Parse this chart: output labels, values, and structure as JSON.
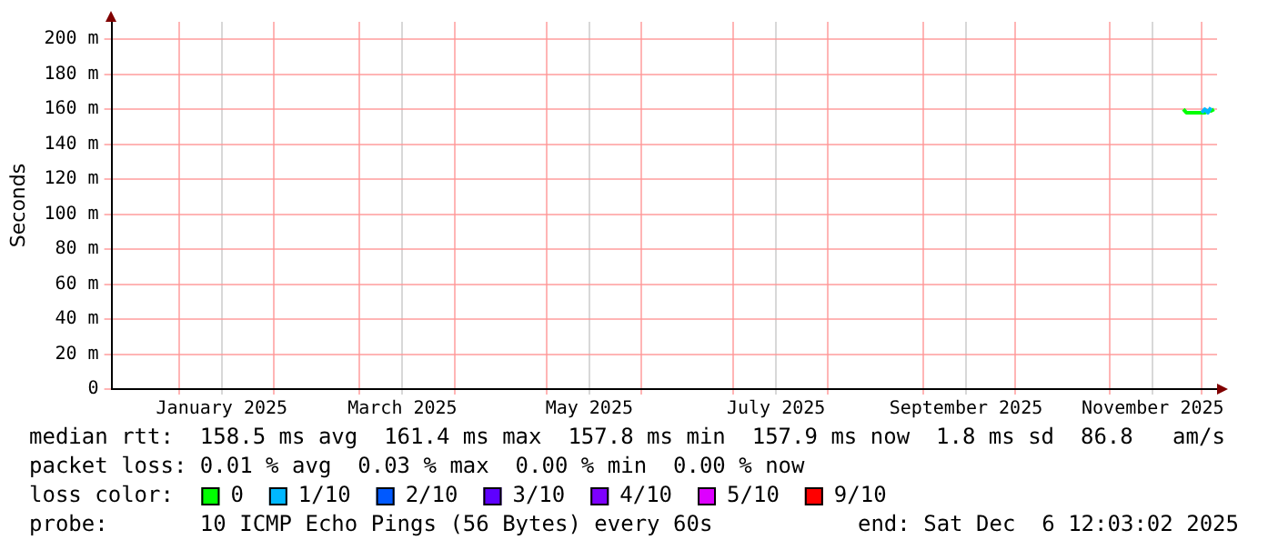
{
  "chart_data": {
    "type": "line",
    "ylabel": "Seconds",
    "legend_title": "loss color:",
    "legend": "bottom",
    "grid": true,
    "marker": "none",
    "line_style": "solid",
    "xlim": [
      "2024-12-10",
      "2025-12-06"
    ],
    "xticks": [
      {
        "value": "2025-01-01",
        "label": null
      },
      {
        "value": "2025-01-15",
        "label": "January 2025"
      },
      {
        "value": "2025-02-01",
        "label": null
      },
      {
        "value": "2025-03-01",
        "label": null
      },
      {
        "value": "2025-03-15",
        "label": "March 2025"
      },
      {
        "value": "2025-04-01",
        "label": null
      },
      {
        "value": "2025-05-01",
        "label": null
      },
      {
        "value": "2025-05-15",
        "label": "May 2025"
      },
      {
        "value": "2025-06-01",
        "label": null
      },
      {
        "value": "2025-07-01",
        "label": null
      },
      {
        "value": "2025-07-15",
        "label": "July 2025"
      },
      {
        "value": "2025-08-01",
        "label": null
      },
      {
        "value": "2025-09-01",
        "label": null
      },
      {
        "value": "2025-09-15",
        "label": "September 2025"
      },
      {
        "value": "2025-10-01",
        "label": null
      },
      {
        "value": "2025-11-01",
        "label": null
      },
      {
        "value": "2025-11-15",
        "label": "November 2025"
      },
      {
        "value": "2025-12-01",
        "label": null
      }
    ],
    "ylim": [
      0,
      210
    ],
    "yticks": [
      0,
      {
        "value": 20,
        "label": "20 m"
      },
      {
        "value": 40,
        "label": "40 m"
      },
      {
        "value": 60,
        "label": "60 m"
      },
      {
        "value": 80,
        "label": "80 m"
      },
      {
        "value": 100,
        "label": "100 m"
      },
      {
        "value": 120,
        "label": "120 m"
      },
      {
        "value": 140,
        "label": "140 m"
      },
      {
        "value": 160,
        "label": "160 m"
      },
      {
        "value": 180,
        "label": "180 m"
      },
      {
        "value": 200,
        "label": "200 m"
      }
    ],
    "series": [
      {
        "name": "0",
        "color": "#00ff00",
        "x": [
          "2025-11-25",
          "2025-11-26",
          "2025-11-27",
          "2025-11-28",
          "2025-11-29",
          "2025-11-30",
          "2025-12-01",
          "2025-12-02",
          "2025-12-03",
          "2025-12-04",
          "2025-12-05"
        ],
        "values": [
          160,
          158,
          158,
          158,
          158,
          158,
          158,
          158,
          159,
          159,
          160
        ]
      },
      {
        "name": "1/10",
        "color": "#00b8ff",
        "x": [
          "2025-12-01",
          "2025-12-02",
          "2025-12-03",
          "2025-12-04"
        ],
        "values": [
          158,
          160,
          158,
          161
        ]
      },
      {
        "name": "2/10",
        "color": "#0059ff"
      },
      {
        "name": "3/10",
        "color": "#5e00ff"
      },
      {
        "name": "4/10",
        "color": "#7e00ff"
      },
      {
        "name": "5/10",
        "color": "#dd00ff"
      },
      {
        "name": "9/10",
        "color": "#ff0000"
      }
    ],
    "annotations": [
      "median rtt:  158.5 ms avg  161.4 ms max  157.8 ms min  157.9 ms now  1.8 ms sd  86.8   am/s",
      "packet loss: 0.01 % avg  0.03 % max  0.00 % min  0.00 % now",
      "probe:       10 ICMP Echo Pings (56 Bytes) every 60s",
      "end: Sat Dec  6 12:03:02 2025"
    ]
  }
}
